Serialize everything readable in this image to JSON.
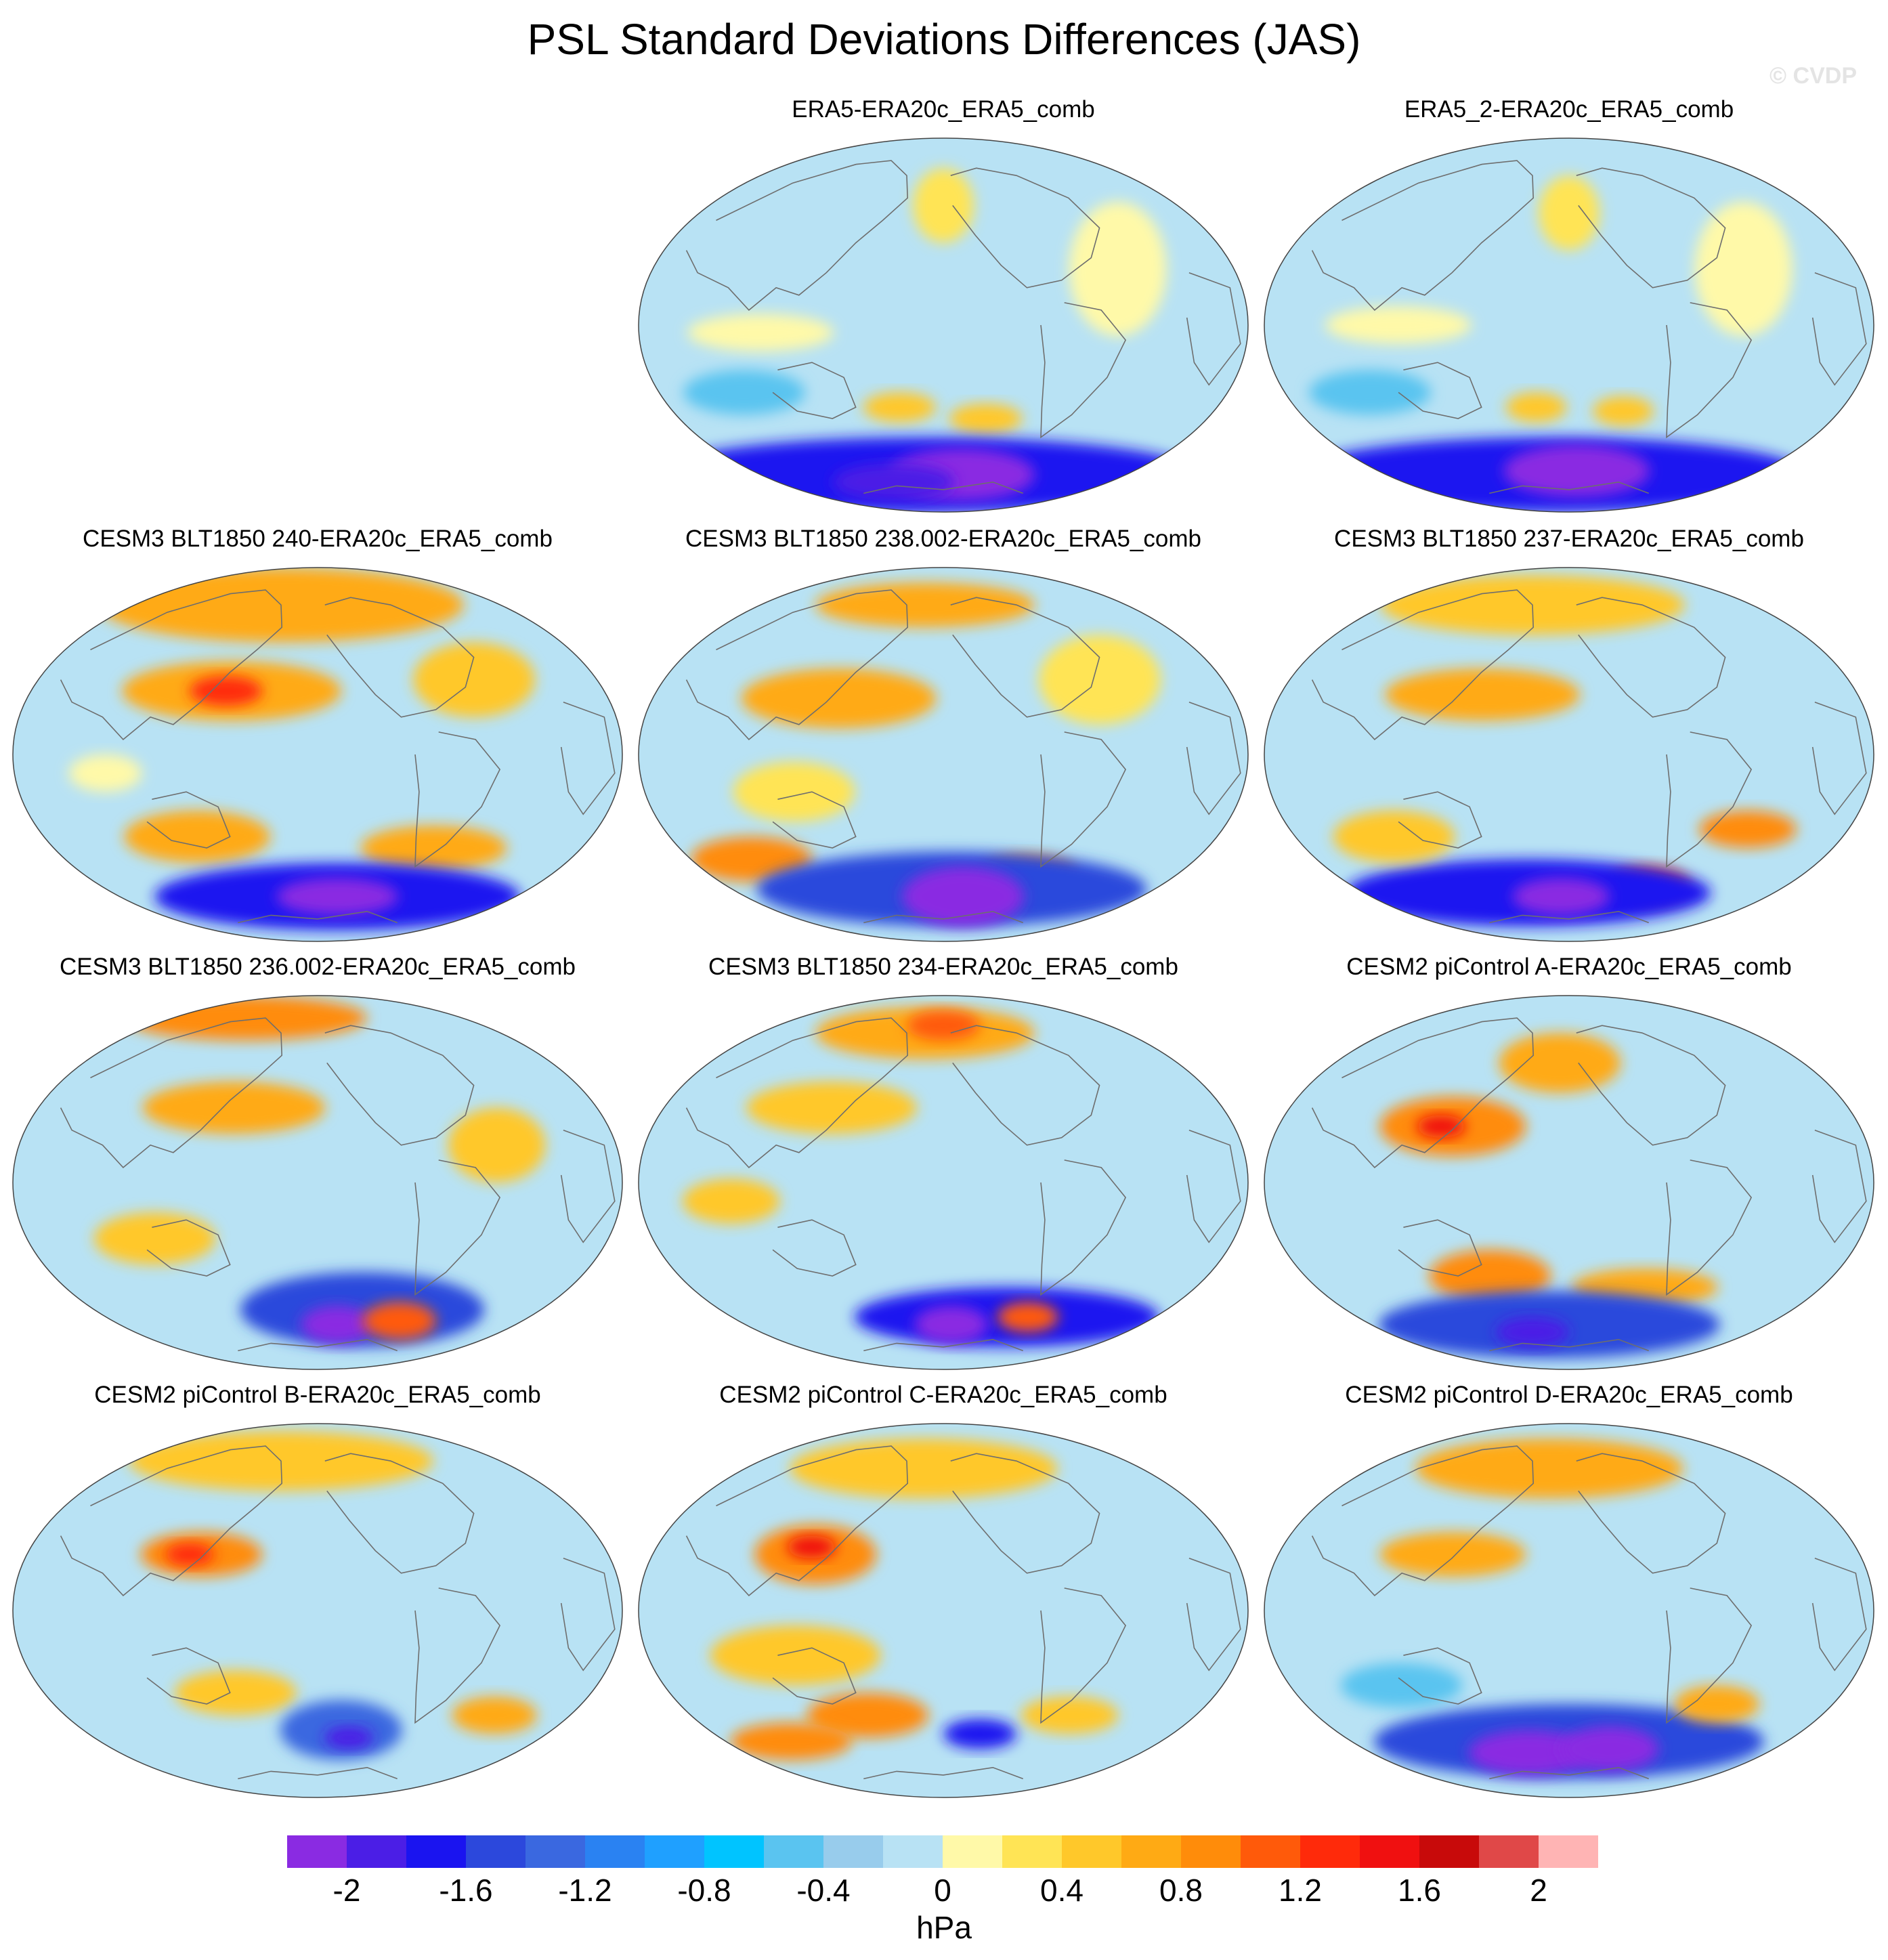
{
  "figure": {
    "title": "PSL Standard Deviations Differences (JAS)",
    "watermark": "© CVDP"
  },
  "panels": [
    {
      "title": "ERA5-ERA20c_ERA5_comb",
      "blobs": [
        {
          "lon": 0.5,
          "lat": 0.18,
          "rx": 0.05,
          "ry": 0.1,
          "level": 12
        },
        {
          "lon": 0.2,
          "lat": 0.52,
          "rx": 0.12,
          "ry": 0.05,
          "level": 11
        },
        {
          "lon": 0.8,
          "lat": 0.35,
          "rx": 0.08,
          "ry": 0.18,
          "level": 11
        },
        {
          "lon": 0.42,
          "lat": 0.72,
          "rx": 0.06,
          "ry": 0.04,
          "level": 13
        },
        {
          "lon": 0.58,
          "lat": 0.75,
          "rx": 0.06,
          "ry": 0.04,
          "level": 13
        },
        {
          "lon": 0.15,
          "lat": 0.68,
          "rx": 0.1,
          "ry": 0.06,
          "level": 8
        },
        {
          "lon": 0.45,
          "lat": 0.9,
          "rx": 0.45,
          "ry": 0.1,
          "level": 2
        },
        {
          "lon": 0.55,
          "lat": 0.9,
          "rx": 0.12,
          "ry": 0.07,
          "level": 0
        },
        {
          "lon": 0.35,
          "lat": 0.92,
          "rx": 0.1,
          "ry": 0.05,
          "level": 1
        }
      ]
    },
    {
      "title": "ERA5_2-ERA20c_ERA5_comb",
      "blobs": [
        {
          "lon": 0.5,
          "lat": 0.2,
          "rx": 0.05,
          "ry": 0.1,
          "level": 12
        },
        {
          "lon": 0.22,
          "lat": 0.5,
          "rx": 0.12,
          "ry": 0.05,
          "level": 11
        },
        {
          "lon": 0.8,
          "lat": 0.35,
          "rx": 0.08,
          "ry": 0.18,
          "level": 11
        },
        {
          "lon": 0.44,
          "lat": 0.72,
          "rx": 0.05,
          "ry": 0.04,
          "level": 13
        },
        {
          "lon": 0.6,
          "lat": 0.73,
          "rx": 0.05,
          "ry": 0.04,
          "level": 13
        },
        {
          "lon": 0.15,
          "lat": 0.68,
          "rx": 0.1,
          "ry": 0.06,
          "level": 8
        },
        {
          "lon": 0.45,
          "lat": 0.9,
          "rx": 0.42,
          "ry": 0.1,
          "level": 2
        },
        {
          "lon": 0.52,
          "lat": 0.89,
          "rx": 0.12,
          "ry": 0.07,
          "level": 0
        }
      ]
    },
    {
      "title": "CESM3 BLT1850 240-ERA20c_ERA5_comb",
      "blobs": [
        {
          "lon": 0.4,
          "lat": 0.1,
          "rx": 0.3,
          "ry": 0.1,
          "level": 14
        },
        {
          "lon": 0.35,
          "lat": 0.33,
          "rx": 0.18,
          "ry": 0.08,
          "level": 14
        },
        {
          "lon": 0.34,
          "lat": 0.33,
          "rx": 0.06,
          "ry": 0.04,
          "level": 17
        },
        {
          "lon": 0.78,
          "lat": 0.3,
          "rx": 0.1,
          "ry": 0.1,
          "level": 13
        },
        {
          "lon": 0.28,
          "lat": 0.72,
          "rx": 0.12,
          "ry": 0.07,
          "level": 14
        },
        {
          "lon": 0.72,
          "lat": 0.75,
          "rx": 0.12,
          "ry": 0.06,
          "level": 14
        },
        {
          "lon": 0.55,
          "lat": 0.88,
          "rx": 0.3,
          "ry": 0.09,
          "level": 2
        },
        {
          "lon": 0.55,
          "lat": 0.88,
          "rx": 0.1,
          "ry": 0.05,
          "level": 0
        },
        {
          "lon": 0.15,
          "lat": 0.55,
          "rx": 0.06,
          "ry": 0.05,
          "level": 11
        }
      ]
    },
    {
      "title": "CESM3 BLT1850 238.002-ERA20c_ERA5_comb",
      "blobs": [
        {
          "lon": 0.45,
          "lat": 0.1,
          "rx": 0.18,
          "ry": 0.06,
          "level": 14
        },
        {
          "lon": 0.32,
          "lat": 0.35,
          "rx": 0.16,
          "ry": 0.08,
          "level": 14
        },
        {
          "lon": 0.12,
          "lat": 0.78,
          "rx": 0.1,
          "ry": 0.06,
          "level": 15
        },
        {
          "lon": 0.68,
          "lat": 0.82,
          "rx": 0.08,
          "ry": 0.05,
          "level": 15
        },
        {
          "lon": 0.52,
          "lat": 0.86,
          "rx": 0.32,
          "ry": 0.1,
          "level": 3
        },
        {
          "lon": 0.55,
          "lat": 0.88,
          "rx": 0.1,
          "ry": 0.08,
          "level": 0
        },
        {
          "lon": 0.78,
          "lat": 0.3,
          "rx": 0.1,
          "ry": 0.12,
          "level": 12
        },
        {
          "lon": 0.25,
          "lat": 0.6,
          "rx": 0.1,
          "ry": 0.08,
          "level": 12
        }
      ]
    },
    {
      "title": "CESM3 BLT1850 237-ERA20c_ERA5_comb",
      "blobs": [
        {
          "lon": 0.4,
          "lat": 0.1,
          "rx": 0.25,
          "ry": 0.08,
          "level": 13
        },
        {
          "lon": 0.35,
          "lat": 0.34,
          "rx": 0.16,
          "ry": 0.07,
          "level": 14
        },
        {
          "lon": 0.82,
          "lat": 0.7,
          "rx": 0.08,
          "ry": 0.05,
          "level": 15
        },
        {
          "lon": 0.68,
          "lat": 0.85,
          "rx": 0.07,
          "ry": 0.05,
          "level": 16
        },
        {
          "lon": 0.4,
          "lat": 0.87,
          "rx": 0.3,
          "ry": 0.09,
          "level": 2
        },
        {
          "lon": 0.48,
          "lat": 0.88,
          "rx": 0.08,
          "ry": 0.05,
          "level": 0
        },
        {
          "lon": 0.18,
          "lat": 0.72,
          "rx": 0.1,
          "ry": 0.07,
          "level": 13
        }
      ]
    },
    {
      "title": "CESM3 BLT1850 236.002-ERA20c_ERA5_comb",
      "blobs": [
        {
          "lon": 0.25,
          "lat": 0.06,
          "rx": 0.2,
          "ry": 0.06,
          "level": 15
        },
        {
          "lon": 0.35,
          "lat": 0.3,
          "rx": 0.15,
          "ry": 0.07,
          "level": 14
        },
        {
          "lon": 0.6,
          "lat": 0.84,
          "rx": 0.2,
          "ry": 0.1,
          "level": 3
        },
        {
          "lon": 0.55,
          "lat": 0.88,
          "rx": 0.06,
          "ry": 0.05,
          "level": 0
        },
        {
          "lon": 0.7,
          "lat": 0.87,
          "rx": 0.06,
          "ry": 0.05,
          "level": 16
        },
        {
          "lon": 0.22,
          "lat": 0.65,
          "rx": 0.1,
          "ry": 0.07,
          "level": 13
        },
        {
          "lon": 0.8,
          "lat": 0.4,
          "rx": 0.08,
          "ry": 0.1,
          "level": 13
        }
      ]
    },
    {
      "title": "CESM3 BLT1850 234-ERA20c_ERA5_comb",
      "blobs": [
        {
          "lon": 0.45,
          "lat": 0.1,
          "rx": 0.18,
          "ry": 0.07,
          "level": 14
        },
        {
          "lon": 0.5,
          "lat": 0.08,
          "rx": 0.06,
          "ry": 0.04,
          "level": 16
        },
        {
          "lon": 0.3,
          "lat": 0.3,
          "rx": 0.14,
          "ry": 0.07,
          "level": 13
        },
        {
          "lon": 0.15,
          "lat": 0.55,
          "rx": 0.08,
          "ry": 0.06,
          "level": 13
        },
        {
          "lon": 0.65,
          "lat": 0.86,
          "rx": 0.25,
          "ry": 0.08,
          "level": 2
        },
        {
          "lon": 0.52,
          "lat": 0.88,
          "rx": 0.06,
          "ry": 0.05,
          "level": 0
        },
        {
          "lon": 0.7,
          "lat": 0.86,
          "rx": 0.05,
          "ry": 0.04,
          "level": 16
        }
      ]
    },
    {
      "title": "CESM2 piControl A-ERA20c_ERA5_comb",
      "blobs": [
        {
          "lon": 0.3,
          "lat": 0.35,
          "rx": 0.12,
          "ry": 0.08,
          "level": 15
        },
        {
          "lon": 0.28,
          "lat": 0.35,
          "rx": 0.04,
          "ry": 0.03,
          "level": 18
        },
        {
          "lon": 0.48,
          "lat": 0.18,
          "rx": 0.1,
          "ry": 0.08,
          "level": 14
        },
        {
          "lon": 0.35,
          "lat": 0.75,
          "rx": 0.1,
          "ry": 0.07,
          "level": 15
        },
        {
          "lon": 0.65,
          "lat": 0.78,
          "rx": 0.12,
          "ry": 0.05,
          "level": 14
        },
        {
          "lon": 0.45,
          "lat": 0.88,
          "rx": 0.28,
          "ry": 0.09,
          "level": 3
        },
        {
          "lon": 0.4,
          "lat": 0.9,
          "rx": 0.06,
          "ry": 0.04,
          "level": 1
        }
      ]
    },
    {
      "title": "CESM2 piControl B-ERA20c_ERA5_comb",
      "blobs": [
        {
          "lon": 0.3,
          "lat": 0.35,
          "rx": 0.1,
          "ry": 0.06,
          "level": 15
        },
        {
          "lon": 0.28,
          "lat": 0.35,
          "rx": 0.04,
          "ry": 0.03,
          "level": 17
        },
        {
          "lon": 0.4,
          "lat": 0.1,
          "rx": 0.25,
          "ry": 0.08,
          "level": 13
        },
        {
          "lon": 0.35,
          "lat": 0.72,
          "rx": 0.1,
          "ry": 0.06,
          "level": 13
        },
        {
          "lon": 0.55,
          "lat": 0.82,
          "rx": 0.1,
          "ry": 0.08,
          "level": 4
        },
        {
          "lon": 0.57,
          "lat": 0.84,
          "rx": 0.04,
          "ry": 0.03,
          "level": 1
        },
        {
          "lon": 0.85,
          "lat": 0.78,
          "rx": 0.07,
          "ry": 0.05,
          "level": 14
        }
      ]
    },
    {
      "title": "CESM2 piControl C-ERA20c_ERA5_comb",
      "blobs": [
        {
          "lon": 0.28,
          "lat": 0.35,
          "rx": 0.1,
          "ry": 0.08,
          "level": 15
        },
        {
          "lon": 0.27,
          "lat": 0.33,
          "rx": 0.04,
          "ry": 0.03,
          "level": 18
        },
        {
          "lon": 0.45,
          "lat": 0.12,
          "rx": 0.22,
          "ry": 0.08,
          "level": 13
        },
        {
          "lon": 0.25,
          "lat": 0.62,
          "rx": 0.14,
          "ry": 0.08,
          "level": 13
        },
        {
          "lon": 0.35,
          "lat": 0.78,
          "rx": 0.1,
          "ry": 0.06,
          "level": 15
        },
        {
          "lon": 0.15,
          "lat": 0.85,
          "rx": 0.1,
          "ry": 0.05,
          "level": 15
        },
        {
          "lon": 0.58,
          "lat": 0.83,
          "rx": 0.06,
          "ry": 0.04,
          "level": 2
        },
        {
          "lon": 0.75,
          "lat": 0.78,
          "rx": 0.08,
          "ry": 0.05,
          "level": 13
        }
      ]
    },
    {
      "title": "CESM2 piControl D-ERA20c_ERA5_comb",
      "blobs": [
        {
          "lon": 0.45,
          "lat": 0.12,
          "rx": 0.22,
          "ry": 0.08,
          "level": 14
        },
        {
          "lon": 0.3,
          "lat": 0.35,
          "rx": 0.12,
          "ry": 0.06,
          "level": 14
        },
        {
          "lon": 0.5,
          "lat": 0.85,
          "rx": 0.32,
          "ry": 0.1,
          "level": 3
        },
        {
          "lon": 0.4,
          "lat": 0.88,
          "rx": 0.1,
          "ry": 0.06,
          "level": 0
        },
        {
          "lon": 0.6,
          "lat": 0.87,
          "rx": 0.08,
          "ry": 0.06,
          "level": 0
        },
        {
          "lon": 0.78,
          "lat": 0.75,
          "rx": 0.07,
          "ry": 0.05,
          "level": 14
        },
        {
          "lon": 0.2,
          "lat": 0.7,
          "rx": 0.1,
          "ry": 0.06,
          "level": 8
        }
      ]
    }
  ],
  "colorbar": {
    "colors": [
      "#8a2be2",
      "#4b1ee6",
      "#1a14f0",
      "#2c48dc",
      "#3a68e0",
      "#2a82f2",
      "#1fa0ff",
      "#00c4ff",
      "#5ac4f0",
      "#98ccec",
      "#b8e2f4",
      "#fff9a8",
      "#ffe455",
      "#ffc82a",
      "#ffaa14",
      "#ff8c0a",
      "#ff5a0a",
      "#ff2a0a",
      "#f01010",
      "#c80a0a",
      "#e04848",
      "#ffb4b4"
    ],
    "labels": [
      "-2",
      "-1.6",
      "-1.2",
      "-0.8",
      "-0.4",
      "0",
      "0.4",
      "0.8",
      "1.2",
      "1.6",
      "2"
    ],
    "units": "hPa",
    "base_level": 10
  }
}
